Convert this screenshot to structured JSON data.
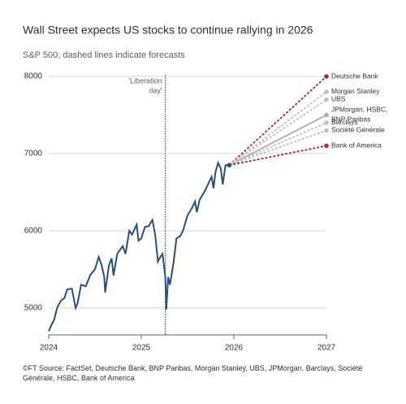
{
  "chart_data": {
    "type": "line",
    "title": "Wall Street expects US stocks to continue rallying in 2026",
    "subtitle": "S&P 500, dashed lines indicate forecasts",
    "source": "©FT Source: FactSet, Deutsche Bank, BNP Paribas, Morgan Stanley, UBS, JPMorgan, Barclays, Société Générale, HSBC, Bank of America",
    "annotation": {
      "lines": [
        "'Liberation",
        "day'"
      ],
      "x": 2025.26
    },
    "xlim": [
      2024,
      2027
    ],
    "xticks": [
      2024,
      2025,
      2026,
      2027
    ],
    "ylim": [
      4650,
      8000
    ],
    "yticks": [
      5000,
      6000,
      7000,
      8000
    ],
    "grid": true,
    "series": [
      {
        "color": "#2a4e82",
        "dashed": false,
        "x": [
          2024.0,
          2024.03,
          2024.06,
          2024.09,
          2024.13,
          2024.17,
          2024.2,
          2024.25,
          2024.29,
          2024.31,
          2024.35,
          2024.4,
          2024.45,
          2024.5,
          2024.54,
          2024.57,
          2024.6,
          2024.61,
          2024.65,
          2024.68,
          2024.7,
          2024.74,
          2024.8,
          2024.83,
          2024.87,
          2024.9,
          2024.95,
          2024.97,
          2025.0,
          2025.04,
          2025.08,
          2025.12,
          2025.15,
          2025.18,
          2025.2,
          2025.23,
          2025.26,
          2025.27,
          2025.29,
          2025.31,
          2025.35,
          2025.38,
          2025.42,
          2025.45,
          2025.5,
          2025.55,
          2025.58,
          2025.6,
          2025.63,
          2025.68,
          2025.72,
          2025.76,
          2025.78,
          2025.8,
          2025.83,
          2025.86,
          2025.88,
          2025.91,
          2025.95
        ],
        "values": [
          4700,
          4780,
          4850,
          5000,
          5090,
          5130,
          5240,
          5250,
          5000,
          5050,
          5300,
          5280,
          5430,
          5500,
          5660,
          5560,
          5400,
          5200,
          5550,
          5640,
          5420,
          5700,
          5800,
          5700,
          6000,
          5950,
          6080,
          5870,
          5900,
          6050,
          6060,
          6140,
          5950,
          5600,
          5650,
          5700,
          5400,
          4980,
          5400,
          5300,
          5600,
          5900,
          5930,
          6000,
          6200,
          6300,
          6380,
          6240,
          6400,
          6500,
          6600,
          6700,
          6550,
          6750,
          6880,
          6800,
          6600,
          6850,
          6850
        ]
      },
      {
        "name": "Deutsche Bank",
        "color": "#a3284a",
        "dashed": true,
        "x": [
          2025.95,
          2027
        ],
        "values": [
          6850,
          8000
        ]
      },
      {
        "name": "Morgan Stanley",
        "color": "#c2c0bd",
        "dashed": true,
        "x": [
          2025.95,
          2027
        ],
        "values": [
          6850,
          7800
        ]
      },
      {
        "name": "UBS",
        "color": "#c2c0bd",
        "dashed": true,
        "x": [
          2025.95,
          2027
        ],
        "values": [
          6850,
          7700
        ]
      },
      {
        "name": [
          "JPMorgan, HSBC,",
          "BNP Paribas"
        ],
        "color": "#b0aeab",
        "dashed": false,
        "x": [
          2025.95,
          2027
        ],
        "values": [
          6850,
          7500
        ]
      },
      {
        "name": "Barclays",
        "color": "#c2c0bd",
        "dashed": true,
        "x": [
          2025.95,
          2027
        ],
        "values": [
          6850,
          7400
        ]
      },
      {
        "name": "Société Générale",
        "color": "#c2c0bd",
        "dashed": true,
        "x": [
          2025.95,
          2027
        ],
        "values": [
          6850,
          7300
        ]
      },
      {
        "name": "Bank of America",
        "color": "#a3284a",
        "dashed": true,
        "x": [
          2025.95,
          2027
        ],
        "values": [
          6850,
          7100
        ]
      }
    ]
  }
}
